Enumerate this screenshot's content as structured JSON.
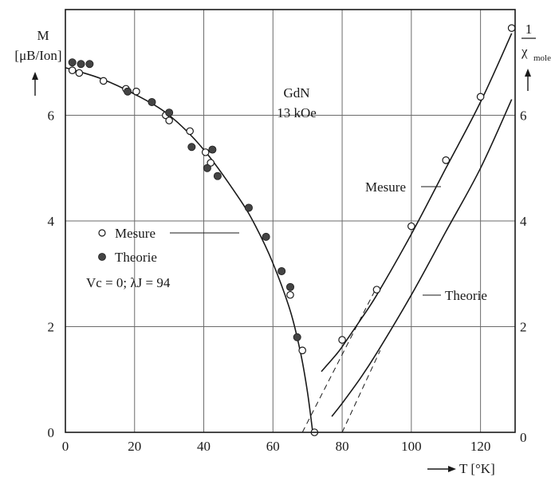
{
  "chart_data": {
    "type": "scatter",
    "title": "GdN",
    "subtitle": "13 kOe",
    "xlabel": "T [°K]",
    "ylabel_left": {
      "main": "M",
      "sub": "[μB/Ion]"
    },
    "ylabel_right": {
      "numerator": "1",
      "denominator": "χ",
      "subscript": "mole"
    },
    "xlim": [
      0,
      130
    ],
    "ylim_left": [
      0,
      8
    ],
    "ylim_right": [
      0,
      8
    ],
    "x_ticks": [
      0,
      20,
      40,
      60,
      80,
      100,
      120
    ],
    "y_ticks_left": [
      0,
      2,
      4,
      6
    ],
    "y_ticks_right": [
      0,
      2,
      4,
      6
    ],
    "grid": true,
    "legend": {
      "position": "middle-left",
      "entries": [
        {
          "marker": "open-circle",
          "label": "Mesure"
        },
        {
          "marker": "filled-circle",
          "label": "Theorie"
        }
      ],
      "params": "Vc = 0; λJ = 94"
    },
    "annotations": [
      {
        "text": "Mesure",
        "target": "inverse-susceptibility-measured"
      },
      {
        "text": "Theorie",
        "target": "inverse-susceptibility-theory"
      }
    ],
    "series": [
      {
        "name": "Mesure",
        "axis": "left",
        "marker": "open-circle",
        "x": [
          2,
          4,
          11,
          17.5,
          20.5,
          29,
          30,
          36,
          40.5,
          42,
          65,
          68.5,
          72
        ],
        "y": [
          6.85,
          6.8,
          6.65,
          6.5,
          6.45,
          6.0,
          5.9,
          5.7,
          5.3,
          5.1,
          2.6,
          1.55,
          0.0
        ]
      },
      {
        "name": "Theorie",
        "axis": "left",
        "marker": "filled-circle",
        "x": [
          2,
          4.5,
          7,
          18,
          25,
          30,
          36.5,
          41,
          42.5,
          44,
          53,
          58,
          62.5,
          65,
          67
        ],
        "y": [
          7.0,
          6.97,
          6.97,
          6.45,
          6.25,
          6.05,
          5.4,
          5.0,
          5.35,
          4.85,
          4.25,
          3.7,
          3.05,
          2.75,
          1.8
        ]
      },
      {
        "name": "Mesure",
        "axis": "right",
        "marker": "open-circle",
        "x": [
          80,
          90,
          100,
          110,
          120,
          129
        ],
        "y": [
          1.75,
          2.7,
          3.9,
          5.15,
          6.35,
          7.65
        ]
      }
    ],
    "curves": [
      {
        "id": "magnetization-fit",
        "axis": "left",
        "x": [
          0,
          10,
          20,
          30,
          40,
          50,
          55,
          60,
          65,
          68,
          70,
          71.5
        ],
        "y": [
          6.9,
          6.7,
          6.4,
          6.0,
          5.35,
          4.45,
          3.9,
          3.2,
          2.3,
          1.5,
          0.75,
          0.0
        ]
      },
      {
        "id": "inverse-susceptibility-measured",
        "axis": "right",
        "x": [
          74,
          78,
          80,
          85,
          90,
          100,
          110,
          120,
          129
        ],
        "y": [
          1.15,
          1.45,
          1.62,
          2.1,
          2.6,
          3.75,
          5.0,
          6.25,
          7.55
        ]
      },
      {
        "id": "inverse-susceptibility-theory",
        "axis": "right",
        "x": [
          77,
          80,
          85,
          90,
          100,
          110,
          120,
          129
        ],
        "y": [
          0.3,
          0.55,
          1.0,
          1.5,
          2.6,
          3.8,
          5.0,
          6.3
        ]
      }
    ],
    "extrapolations": [
      {
        "axis": "right",
        "x": [
          68.5,
          90
        ],
        "y": [
          0.0,
          2.75
        ]
      },
      {
        "axis": "right",
        "x": [
          80,
          91
        ],
        "y": [
          0.0,
          1.55
        ]
      }
    ]
  }
}
